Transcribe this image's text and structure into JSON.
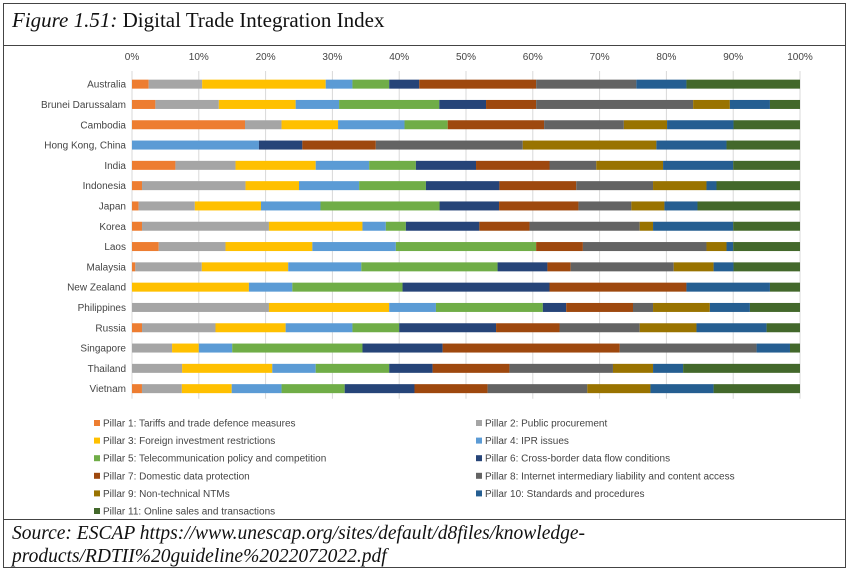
{
  "figure": {
    "label": "Figure 1.51:",
    "title": "Digital Trade Integration Index"
  },
  "source": {
    "line1": "Source: ESCAP https://www.unescap.org/sites/default/d8files/knowledge-",
    "line2": "products/RDTII%20guideline%2022072022.pdf"
  },
  "chart_data": {
    "type": "bar",
    "orientation": "horizontal",
    "stacked": "percent",
    "xlim": [
      0,
      100
    ],
    "x_ticks": [
      "0%",
      "10%",
      "20%",
      "30%",
      "40%",
      "50%",
      "60%",
      "70%",
      "80%",
      "90%",
      "100%"
    ],
    "grid": true,
    "legend_position": "bottom",
    "categories": [
      "Australia",
      "Brunei Darussalam",
      "Cambodia",
      "Hong Kong, China",
      "India",
      "Indonesia",
      "Japan",
      "Korea",
      "Laos",
      "Malaysia",
      "New Zealand",
      "Philippines",
      "Russia",
      "Singapore",
      "Thailand",
      "Vietnam"
    ],
    "series": [
      {
        "name": "Pillar 1: Tariffs and trade defence measures",
        "color": "#ED7D31",
        "values": [
          2.5,
          3.5,
          17,
          0,
          6.5,
          1.5,
          1,
          1.5,
          4,
          0.5,
          0,
          0,
          1.5,
          0,
          0,
          1.5
        ]
      },
      {
        "name": "Pillar 2: Public procurement",
        "color": "#A5A5A5",
        "values": [
          8,
          9.5,
          5.5,
          0,
          9,
          15.5,
          8.5,
          19,
          10,
          10,
          0,
          20.5,
          11,
          6,
          7.5,
          6
        ]
      },
      {
        "name": "Pillar 3: Foreign investment restrictions",
        "color": "#FFC000",
        "values": [
          18.5,
          11.5,
          8.5,
          0,
          12,
          8,
          10,
          14,
          13,
          13,
          17.5,
          18,
          10.5,
          4,
          13.5,
          7.5
        ]
      },
      {
        "name": "Pillar 4: IPR issues",
        "color": "#5B9BD5",
        "values": [
          4,
          6.5,
          10,
          19,
          8,
          9,
          9,
          3.5,
          12.5,
          11,
          6.5,
          7,
          10,
          5,
          6.5,
          7.5
        ]
      },
      {
        "name": "Pillar 5: Telecommunication policy and competition",
        "color": "#70AD47",
        "values": [
          5.5,
          15,
          6.5,
          0,
          7,
          10,
          18,
          3,
          21,
          20.5,
          16.5,
          16,
          7,
          19.5,
          11,
          9.5
        ]
      },
      {
        "name": "Pillar 6: Cross-border data flow conditions",
        "color": "#264478",
        "values": [
          4.5,
          7,
          0,
          6.5,
          9,
          11,
          9,
          11,
          0,
          7.5,
          22,
          3.5,
          14.5,
          12,
          6.5,
          10.5
        ]
      },
      {
        "name": "Pillar 7: Domestic data protection",
        "color": "#9E480E",
        "values": [
          17.5,
          7.5,
          14.5,
          11,
          11,
          11.5,
          12,
          7.5,
          7,
          3.5,
          20.5,
          10,
          9.5,
          26.5,
          11.5,
          11
        ]
      },
      {
        "name": "Pillar 8: Internet intermediary liability and content access",
        "color": "#636363",
        "values": [
          15,
          23.5,
          12,
          22,
          7,
          11.5,
          8,
          16.5,
          18.5,
          15.5,
          0,
          3,
          12,
          20.5,
          15.5,
          15
        ]
      },
      {
        "name": "Pillar 9: Non-technical NTMs",
        "color": "#997300",
        "values": [
          0,
          5.5,
          6.5,
          20,
          10,
          8,
          5,
          2,
          3,
          6,
          0,
          8.5,
          8.5,
          0,
          6,
          9.5
        ]
      },
      {
        "name": "Pillar 10: Standards and procedures",
        "color": "#255E91",
        "values": [
          7.5,
          6,
          10,
          10.5,
          10.5,
          1.5,
          5,
          12,
          1,
          3,
          12.5,
          6,
          10.5,
          5,
          4.5,
          9.5
        ]
      },
      {
        "name": "Pillar 11: Online sales and transactions",
        "color": "#43682B",
        "values": [
          17,
          4.5,
          10,
          11,
          10,
          12.5,
          15.5,
          10,
          10,
          10,
          4.5,
          7.5,
          5,
          1.5,
          17.5,
          13
        ]
      }
    ]
  }
}
